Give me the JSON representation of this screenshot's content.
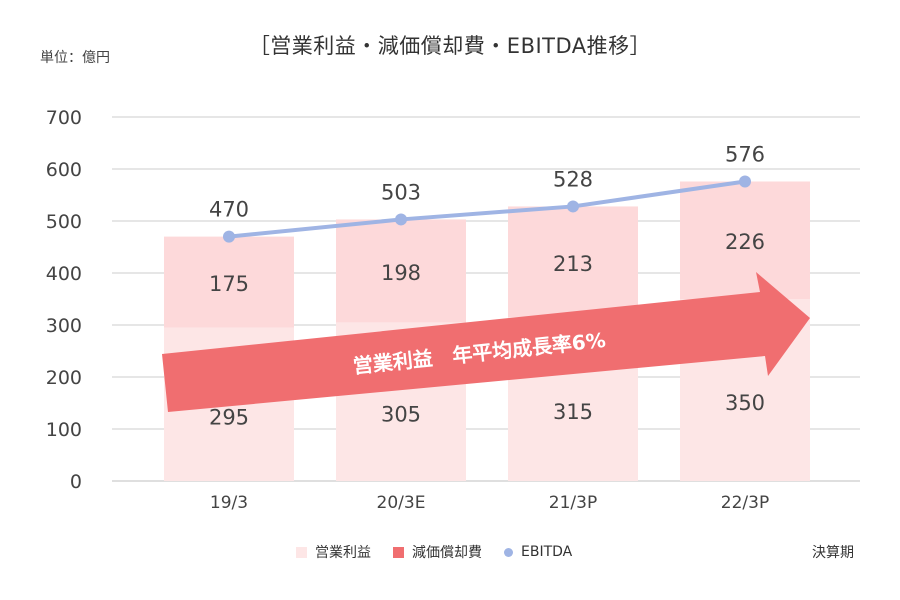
{
  "unit_label": "単位：億円",
  "colors": {
    "operating_income": "#fde6e6",
    "depreciation": "#fdd9da",
    "ebitda": "#9fb4e4",
    "arrow": "#f06e70",
    "grid": "#cccccc",
    "axis_text": "#444444"
  },
  "annotation": "営業利益　年平均成長率6%",
  "legend_suffix": "決算期",
  "chart_data": {
    "type": "bar",
    "title": "［営業利益・減価償却費・EBITDA推移］",
    "categories": [
      "19/3",
      "20/3E",
      "21/3P",
      "22/3P"
    ],
    "ylim": [
      0,
      700
    ],
    "yticks": [
      0,
      100,
      200,
      300,
      400,
      500,
      600,
      700
    ],
    "grid": true,
    "legend": "bottom",
    "series": [
      {
        "name": "営業利益",
        "kind": "bar",
        "stacked": true,
        "values": [
          295,
          305,
          315,
          350
        ],
        "labels": [
          "295",
          "305",
          "315",
          "350"
        ]
      },
      {
        "name": "減価償却費",
        "kind": "bar",
        "stacked": true,
        "values": [
          175,
          198,
          213,
          226
        ],
        "labels": [
          "175",
          "198",
          "213",
          "226"
        ]
      },
      {
        "name": "EBITDA",
        "kind": "line",
        "values": [
          470,
          503,
          528,
          576
        ],
        "labels": [
          "470",
          "503",
          "528",
          "576"
        ]
      }
    ]
  }
}
